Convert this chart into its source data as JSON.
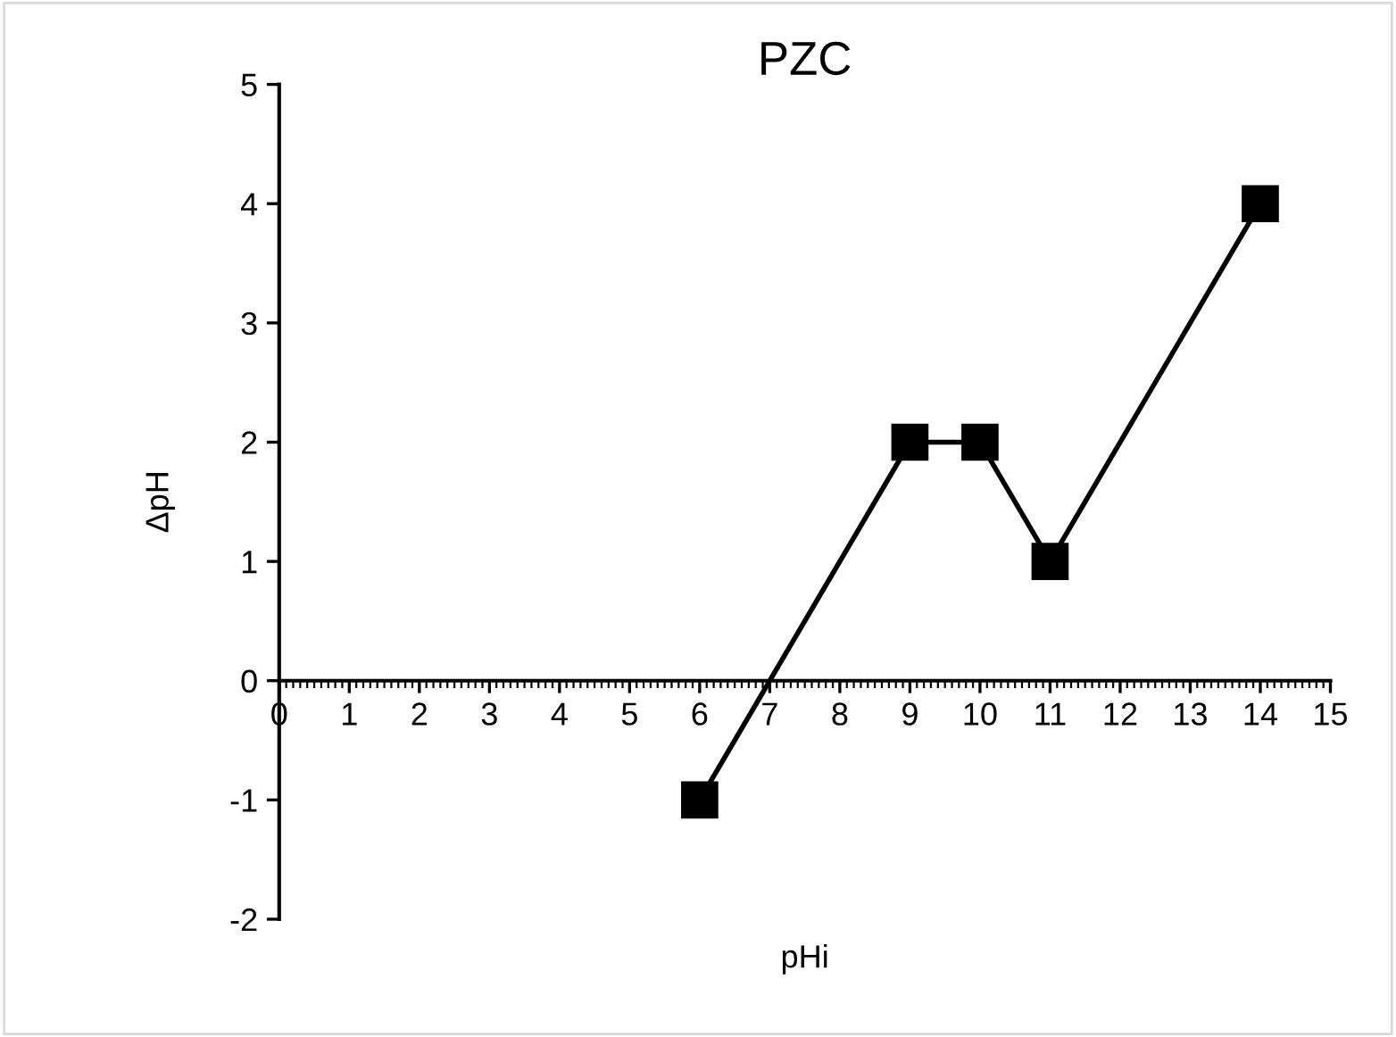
{
  "chart_data": {
    "type": "line",
    "title": "PZC",
    "xlabel": "pHi",
    "ylabel": "ΔpH",
    "x": [
      6,
      9,
      10,
      11,
      14
    ],
    "series": [
      {
        "color": "#000000",
        "values": [
          -1,
          2,
          2,
          1,
          4
        ]
      }
    ],
    "xlim": [
      0,
      15
    ],
    "xticks": [
      0,
      1,
      2,
      3,
      4,
      5,
      6,
      7,
      8,
      9,
      10,
      11,
      12,
      13,
      14,
      15
    ],
    "ylim": [
      -2,
      5
    ],
    "yticks": [
      -2,
      -1,
      0,
      1,
      2,
      3,
      4,
      5
    ],
    "grid": false,
    "legend": false,
    "marker": "square",
    "line_style": "solid"
  }
}
